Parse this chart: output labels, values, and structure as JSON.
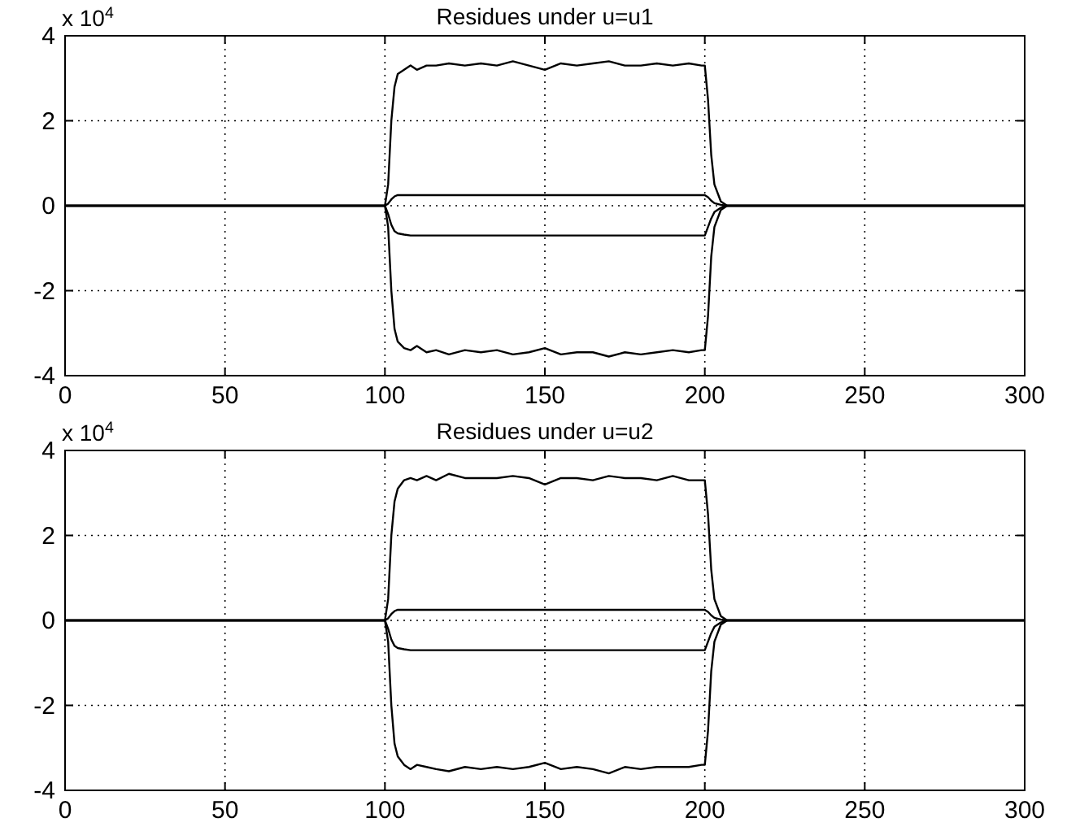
{
  "chart_data": [
    {
      "type": "line",
      "title": "Residues under u=u1",
      "annotations": [
        "x 10$^{4}$"
      ],
      "xlim": [
        0,
        300
      ],
      "xticks": [
        0,
        50,
        100,
        150,
        200,
        250,
        300
      ],
      "ylim": [
        -4,
        4
      ],
      "yticks": [
        -4,
        -2,
        0,
        2,
        4
      ],
      "grid": true,
      "line_style": "solid",
      "x": [
        0,
        100,
        101,
        102,
        103,
        104,
        106,
        108,
        110,
        113,
        116,
        120,
        125,
        130,
        135,
        140,
        145,
        150,
        155,
        160,
        165,
        170,
        175,
        180,
        185,
        190,
        195,
        199,
        200,
        201,
        202,
        203,
        205,
        207,
        300
      ],
      "series": [
        {
          "color": "#000000",
          "values": [
            0,
            0,
            0.5,
            2,
            2.8,
            3.1,
            3.2,
            3.3,
            3.2,
            3.3,
            3.3,
            3.35,
            3.3,
            3.35,
            3.3,
            3.4,
            3.3,
            3.2,
            3.35,
            3.3,
            3.35,
            3.4,
            3.3,
            3.3,
            3.35,
            3.3,
            3.35,
            3.3,
            3.3,
            2.5,
            1.2,
            0.5,
            0.1,
            0,
            0
          ]
        },
        {
          "color": "#000000",
          "values": [
            0,
            0,
            0.05,
            0.15,
            0.22,
            0.25,
            0.25,
            0.25,
            0.25,
            0.25,
            0.25,
            0.25,
            0.25,
            0.25,
            0.25,
            0.25,
            0.25,
            0.25,
            0.25,
            0.25,
            0.25,
            0.25,
            0.25,
            0.25,
            0.25,
            0.25,
            0.25,
            0.25,
            0.25,
            0.2,
            0.12,
            0.06,
            0.02,
            0,
            0
          ]
        },
        {
          "color": "#000000",
          "values": [
            0,
            0,
            -0.2,
            -0.45,
            -0.6,
            -0.65,
            -0.68,
            -0.7,
            -0.7,
            -0.7,
            -0.7,
            -0.7,
            -0.7,
            -0.7,
            -0.7,
            -0.7,
            -0.7,
            -0.7,
            -0.7,
            -0.7,
            -0.7,
            -0.7,
            -0.7,
            -0.7,
            -0.7,
            -0.7,
            -0.7,
            -0.7,
            -0.7,
            -0.5,
            -0.3,
            -0.15,
            -0.05,
            0,
            0
          ]
        },
        {
          "color": "#000000",
          "values": [
            0,
            0,
            -0.5,
            -2,
            -2.9,
            -3.2,
            -3.35,
            -3.4,
            -3.3,
            -3.45,
            -3.4,
            -3.5,
            -3.4,
            -3.45,
            -3.4,
            -3.5,
            -3.45,
            -3.35,
            -3.5,
            -3.45,
            -3.45,
            -3.55,
            -3.45,
            -3.5,
            -3.45,
            -3.4,
            -3.45,
            -3.4,
            -3.4,
            -2.6,
            -1.2,
            -0.5,
            -0.1,
            0,
            0
          ]
        }
      ]
    },
    {
      "type": "line",
      "title": "Residues under u=u2",
      "annotations": [
        "x 10$^{4}$"
      ],
      "xlim": [
        0,
        300
      ],
      "xticks": [
        0,
        50,
        100,
        150,
        200,
        250,
        300
      ],
      "ylim": [
        -4,
        4
      ],
      "yticks": [
        -4,
        -2,
        0,
        2,
        4
      ],
      "grid": true,
      "line_style": "solid",
      "x": [
        0,
        100,
        101,
        102,
        103,
        104,
        106,
        108,
        110,
        113,
        116,
        120,
        125,
        130,
        135,
        140,
        145,
        150,
        155,
        160,
        165,
        170,
        175,
        180,
        185,
        190,
        195,
        199,
        200,
        201,
        202,
        203,
        205,
        207,
        300
      ],
      "series": [
        {
          "color": "#000000",
          "values": [
            0,
            0,
            0.5,
            2,
            2.8,
            3.1,
            3.3,
            3.35,
            3.3,
            3.4,
            3.3,
            3.45,
            3.35,
            3.35,
            3.35,
            3.4,
            3.35,
            3.2,
            3.35,
            3.35,
            3.3,
            3.4,
            3.35,
            3.35,
            3.3,
            3.4,
            3.3,
            3.3,
            3.3,
            2.5,
            1.2,
            0.5,
            0.1,
            0,
            0
          ]
        },
        {
          "color": "#000000",
          "values": [
            0,
            0,
            0.05,
            0.15,
            0.22,
            0.25,
            0.25,
            0.25,
            0.25,
            0.25,
            0.25,
            0.25,
            0.25,
            0.25,
            0.25,
            0.25,
            0.25,
            0.25,
            0.25,
            0.25,
            0.25,
            0.25,
            0.25,
            0.25,
            0.25,
            0.25,
            0.25,
            0.25,
            0.25,
            0.2,
            0.12,
            0.06,
            0.02,
            0,
            0
          ]
        },
        {
          "color": "#000000",
          "values": [
            0,
            0,
            -0.2,
            -0.45,
            -0.6,
            -0.65,
            -0.68,
            -0.7,
            -0.7,
            -0.7,
            -0.7,
            -0.7,
            -0.7,
            -0.7,
            -0.7,
            -0.7,
            -0.7,
            -0.7,
            -0.7,
            -0.7,
            -0.7,
            -0.7,
            -0.7,
            -0.7,
            -0.7,
            -0.7,
            -0.7,
            -0.7,
            -0.7,
            -0.5,
            -0.3,
            -0.15,
            -0.05,
            0,
            0
          ]
        },
        {
          "color": "#000000",
          "values": [
            0,
            0,
            -0.5,
            -2,
            -2.9,
            -3.2,
            -3.4,
            -3.5,
            -3.4,
            -3.45,
            -3.5,
            -3.55,
            -3.45,
            -3.5,
            -3.45,
            -3.5,
            -3.45,
            -3.35,
            -3.5,
            -3.45,
            -3.5,
            -3.6,
            -3.45,
            -3.5,
            -3.45,
            -3.45,
            -3.45,
            -3.4,
            -3.4,
            -2.6,
            -1.2,
            -0.5,
            -0.1,
            0,
            0
          ]
        }
      ]
    }
  ]
}
